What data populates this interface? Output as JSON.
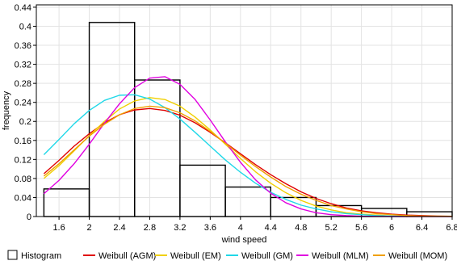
{
  "chart_data": {
    "type": "bar",
    "xlabel": "wind speed",
    "ylabel": "frequency",
    "xlim": [
      1.3,
      6.8
    ],
    "ylim": [
      0,
      0.445
    ],
    "grid": true,
    "legend_position": "bottom",
    "xticks": [
      "1.6",
      "2",
      "2.4",
      "2.8",
      "3.2",
      "3.6",
      "4",
      "4.4",
      "4.8",
      "5.2",
      "5.6",
      "6",
      "6.4",
      "6.8"
    ],
    "yticks": [
      "0",
      "0.04",
      "0.08",
      "0.12",
      "0.16",
      "0.2",
      "0.24",
      "0.28",
      "0.32",
      "0.36",
      "0.4",
      "0.44"
    ],
    "histogram": {
      "name": "Histogram",
      "bin_edges": [
        1.4,
        2.0,
        2.6,
        3.2,
        3.8,
        4.4,
        5.0,
        5.6,
        6.2,
        6.8
      ],
      "values": [
        0.058,
        0.408,
        0.287,
        0.108,
        0.062,
        0.04,
        0.023,
        0.017,
        0.01
      ]
    },
    "series": [
      {
        "name": "Weibull (AGM)",
        "color": "#e00000",
        "x": [
          1.4,
          1.6,
          1.8,
          2.0,
          2.2,
          2.4,
          2.6,
          2.8,
          3.0,
          3.2,
          3.4,
          3.6,
          3.8,
          4.0,
          4.2,
          4.4,
          4.6,
          4.8,
          5.0,
          5.2,
          5.4,
          5.6,
          5.8,
          6.0,
          6.2,
          6.4,
          6.6,
          6.8
        ],
        "values": [
          0.09,
          0.118,
          0.148,
          0.174,
          0.197,
          0.214,
          0.224,
          0.227,
          0.223,
          0.213,
          0.197,
          0.177,
          0.155,
          0.132,
          0.109,
          0.088,
          0.069,
          0.052,
          0.038,
          0.027,
          0.018,
          0.012,
          0.008,
          0.005,
          0.003,
          0.002,
          0.001,
          0.0005
        ]
      },
      {
        "name": "Weibull (EM)",
        "color": "#f0d000",
        "x": [
          1.4,
          1.6,
          1.8,
          2.0,
          2.2,
          2.4,
          2.6,
          2.8,
          3.0,
          3.2,
          3.4,
          3.6,
          3.8,
          4.0,
          4.2,
          4.4,
          4.6,
          4.8,
          5.0,
          5.2,
          5.4,
          5.6,
          5.8,
          6.0,
          6.2,
          6.4,
          6.6,
          6.8
        ],
        "values": [
          0.08,
          0.107,
          0.138,
          0.17,
          0.2,
          0.226,
          0.243,
          0.25,
          0.246,
          0.232,
          0.209,
          0.182,
          0.152,
          0.122,
          0.094,
          0.07,
          0.05,
          0.034,
          0.022,
          0.014,
          0.008,
          0.005,
          0.003,
          0.001,
          0.0008,
          0.0004,
          0.0002,
          0.0001
        ]
      },
      {
        "name": "Weibull (GM)",
        "color": "#20d8e8",
        "x": [
          1.4,
          1.6,
          1.8,
          2.0,
          2.2,
          2.4,
          2.6,
          2.8,
          3.0,
          3.2,
          3.4,
          3.6,
          3.8,
          4.0,
          4.2,
          4.4,
          4.6,
          4.8,
          5.0,
          5.2,
          5.4,
          5.6,
          5.8,
          6.0,
          6.2,
          6.4,
          6.6,
          6.8
        ],
        "values": [
          0.13,
          0.162,
          0.195,
          0.223,
          0.244,
          0.255,
          0.256,
          0.247,
          0.229,
          0.205,
          0.177,
          0.148,
          0.119,
          0.093,
          0.07,
          0.051,
          0.036,
          0.024,
          0.016,
          0.01,
          0.006,
          0.004,
          0.002,
          0.001,
          0.0006,
          0.0003,
          0.0001,
          0.0001
        ]
      },
      {
        "name": "Weibull (MLM)",
        "color": "#e000e0",
        "x": [
          1.4,
          1.6,
          1.8,
          2.0,
          2.2,
          2.4,
          2.6,
          2.8,
          3.0,
          3.2,
          3.4,
          3.6,
          3.8,
          4.0,
          4.2,
          4.4,
          4.6,
          4.8,
          5.0,
          5.2,
          5.4,
          5.6,
          5.8,
          6.0,
          6.2,
          6.4,
          6.6,
          6.8
        ],
        "values": [
          0.048,
          0.076,
          0.111,
          0.152,
          0.196,
          0.237,
          0.271,
          0.291,
          0.294,
          0.278,
          0.246,
          0.203,
          0.157,
          0.114,
          0.077,
          0.049,
          0.029,
          0.016,
          0.008,
          0.004,
          0.002,
          0.0008,
          0.0003,
          0.0001,
          0.0,
          0.0,
          0.0,
          0.0
        ]
      },
      {
        "name": "Weibull (MOM)",
        "color": "#f0a000",
        "x": [
          1.4,
          1.6,
          1.8,
          2.0,
          2.2,
          2.4,
          2.6,
          2.8,
          3.0,
          3.2,
          3.4,
          3.6,
          3.8,
          4.0,
          4.2,
          4.4,
          4.6,
          4.8,
          5.0,
          5.2,
          5.4,
          5.6,
          5.8,
          6.0,
          6.2,
          6.4,
          6.6,
          6.8
        ],
        "values": [
          0.085,
          0.111,
          0.14,
          0.169,
          0.194,
          0.214,
          0.227,
          0.232,
          0.229,
          0.218,
          0.201,
          0.179,
          0.154,
          0.129,
          0.105,
          0.083,
          0.063,
          0.047,
          0.034,
          0.023,
          0.016,
          0.01,
          0.006,
          0.004,
          0.002,
          0.001,
          0.0007,
          0.0004
        ]
      }
    ]
  }
}
